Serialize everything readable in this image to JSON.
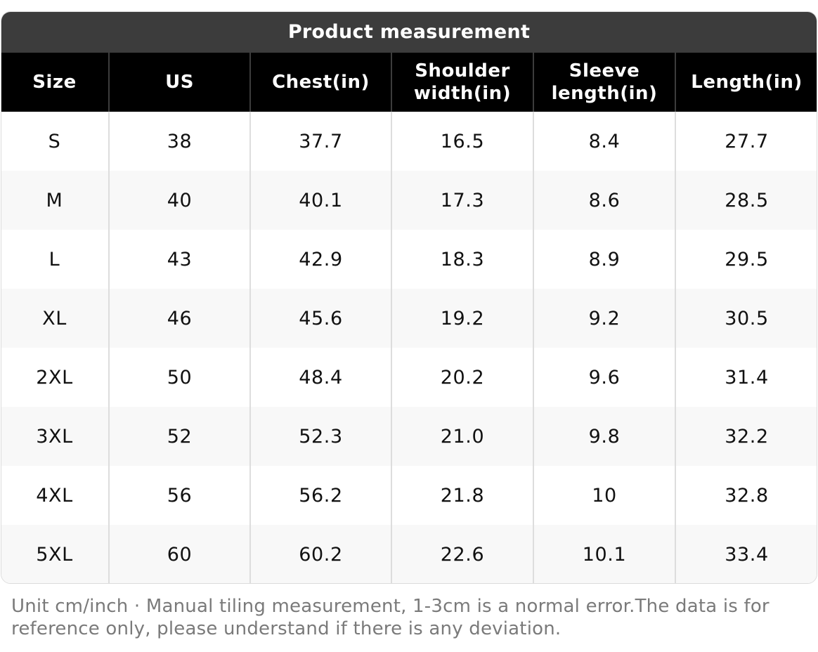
{
  "title": "Product measurement",
  "columns": [
    "Size",
    "US",
    "Chest(in)",
    "Shoulder\nwidth(in)",
    "Sleeve\nlength(in)",
    "Length(in)"
  ],
  "rows": [
    [
      "S",
      "38",
      "37.7",
      "16.5",
      "8.4",
      "27.7"
    ],
    [
      "M",
      "40",
      "40.1",
      "17.3",
      "8.6",
      "28.5"
    ],
    [
      "L",
      "43",
      "42.9",
      "18.3",
      "8.9",
      "29.5"
    ],
    [
      "XL",
      "46",
      "45.6",
      "19.2",
      "9.2",
      "30.5"
    ],
    [
      "2XL",
      "50",
      "48.4",
      "20.2",
      "9.6",
      "31.4"
    ],
    [
      "3XL",
      "52",
      "52.3",
      "21.0",
      "9.8",
      "32.2"
    ],
    [
      "4XL",
      "56",
      "56.2",
      "21.8",
      "10",
      "32.8"
    ],
    [
      "5XL",
      "60",
      "60.2",
      "22.6",
      "10.1",
      "33.4"
    ]
  ],
  "footnote": "Unit cm/inch · Manual tiling measurement, 1-3cm is a normal error.The data is for reference only, please understand if there is any deviation.",
  "colors": {
    "title_bg": "#3c3c3c",
    "header_bg": "#000000",
    "stripe_bg": "#f8f8f8",
    "footnote_text": "#7a7a7a"
  }
}
